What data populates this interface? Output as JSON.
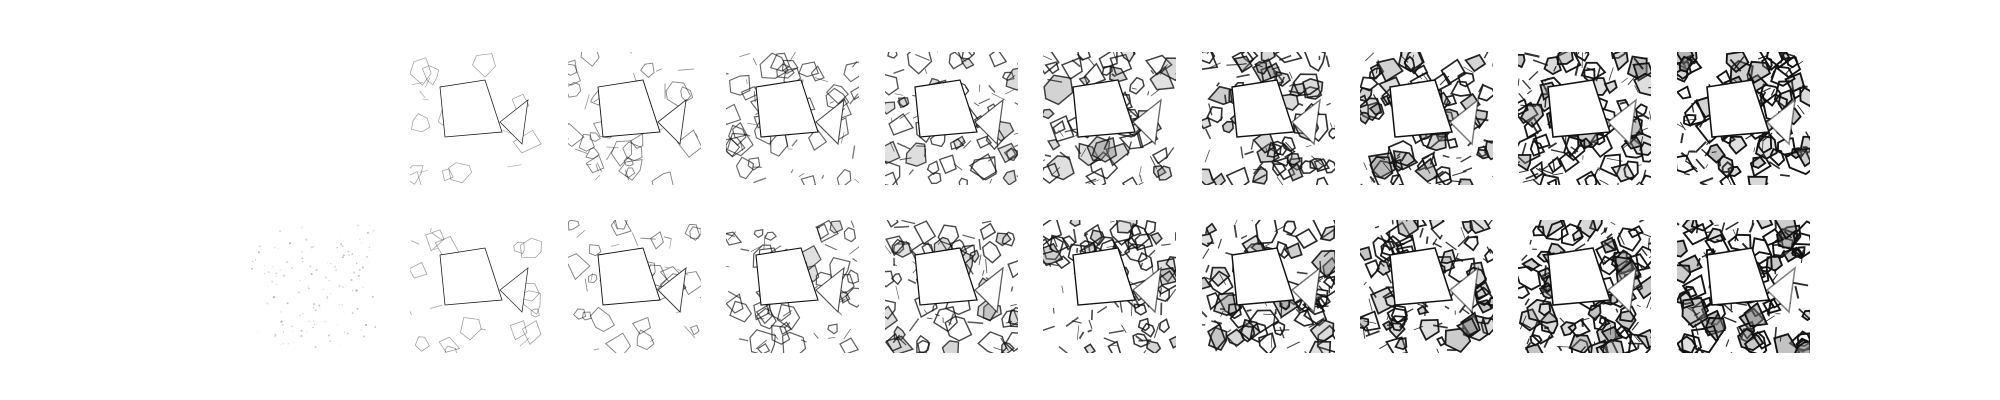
{
  "figure": {
    "rows": 2,
    "columns": 10,
    "background": "#ffffff",
    "ink": "#111111",
    "shade": "#555555",
    "row_1_densities": [
      0,
      0.12,
      0.28,
      0.45,
      0.6,
      0.7,
      0.8,
      0.88,
      0.94,
      0.98
    ],
    "row_2_densities": [
      0.05,
      0.14,
      0.3,
      0.5,
      0.65,
      0.75,
      0.84,
      0.9,
      0.95,
      0.99
    ]
  }
}
